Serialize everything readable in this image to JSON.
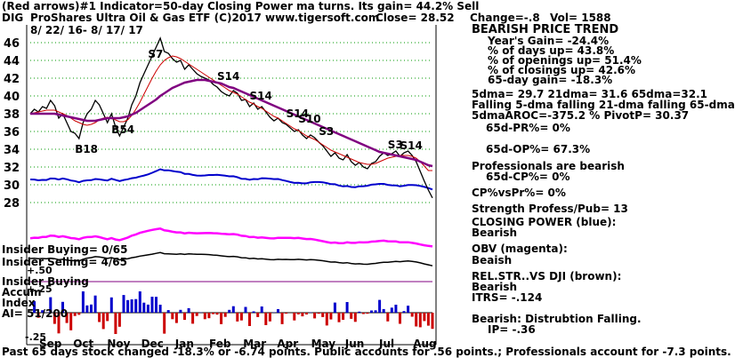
{
  "header": {
    "line1": "(Red arrows)#1 Indicator=50-day Closing Power ma turns. Its gain= 44.2% Sell",
    "ticker": "DIG",
    "line2": "ProShares Ultra Oil & Gas ETF  (C)2017 www.tigersoft.com",
    "close": "Close=  28.52",
    "change": "Change=-.8",
    "vol": "Vol= 1588",
    "dates": "8/ 22/ 16-  8/ 17/ 17"
  },
  "right_panel": {
    "trend": "BEARISH PRICE TREND",
    "stats": [
      "Year's Gain= -24.4%",
      "% of days up= 43.8%",
      "% of openings up= 51.4%",
      "% of closings up= 42.6%",
      "65-day gain= -18.3%"
    ],
    "ma_line": "5dma= 29.7 21dma= 31.6 65dma=32.1",
    "falling": "Falling 5-dma falling 21-dma falling 65-dma",
    "aroc": "5dmaAROC=-375.2 %  PivotP= 30.37",
    "pr": "65d-PR%= 0%",
    "op": "65d-OP%= 67.3%",
    "prof": "Professionals are bearish",
    "cp": "65d-CP%= 0%",
    "cpvspr": "CP%vsPr%= 0%",
    "strength": "Strength Profess/Pub= 13",
    "closing_power": "CLOSING POWER (blue):",
    "closing_power_v": "Bearish",
    "obv": "OBV (magenta):",
    "obv_v": "Beaish",
    "relstr": "REL.STR..VS DJI (brown):",
    "relstr_v": "Bearish",
    "itrs": "ITRS= -.124",
    "bearish": "Bearish: Distrubtion Falling.",
    "ip": "IP= -.36"
  },
  "left_labels": {
    "insider_buying": "Insider Buying= 0/65",
    "insider_selling": "Insider Selling= 4/65",
    "plus50": "+.50",
    "insider_buying2": "Insider Buying",
    "accum": "Accum",
    "plus25": "+.25",
    "index": "Index",
    "ai": "AI= 51/200",
    "minus25": "-.25"
  },
  "footer": "Past 65 days stock changed -18.3% or -6.74 points.  Public accounts for .56 points.;  Professionals account for -7.3 points.",
  "colors": {
    "price": "#000000",
    "ma21": "#cc0000",
    "ma65": "#800080",
    "closing_power": "#0000cc",
    "obv": "#ff00ff",
    "relstr": "#cc0000",
    "grid": "#009900",
    "accum_pos": "#0000cc",
    "accum_neg": "#cc0000",
    "arrow": "#ff0000"
  },
  "signals": [
    {
      "label": "S7",
      "month": "Dec"
    },
    {
      "label": "S14",
      "month": "Feb"
    },
    {
      "label": "S14",
      "month": "Mar"
    },
    {
      "label": "S14",
      "month": "Apr"
    },
    {
      "label": "S10",
      "month": "Apr"
    },
    {
      "label": "S3",
      "month": "May"
    },
    {
      "label": "S3",
      "month": "Jul"
    },
    {
      "label": "S14",
      "month": "Jul"
    },
    {
      "label": "B54",
      "month": "Nov"
    },
    {
      "label": "B18",
      "month": "Oct"
    }
  ],
  "chart_data": {
    "type": "line",
    "ylim": [
      27,
      48
    ],
    "y_ticks": [
      28,
      30,
      32,
      34,
      36,
      38,
      40,
      42,
      44,
      46
    ],
    "months": [
      "Sep",
      "Oct",
      "Nov",
      "Dec",
      "Jan",
      "Feb",
      "Mar",
      "Apr",
      "May",
      "Jun",
      "Jul",
      "Aug"
    ],
    "x": [
      0,
      1,
      2,
      3,
      4,
      5,
      6,
      7,
      8,
      9,
      10,
      11,
      12,
      13,
      14,
      15,
      16,
      17,
      18,
      19,
      20,
      21,
      22,
      23,
      24,
      25,
      26,
      27,
      28,
      29,
      30,
      31,
      32,
      33,
      34,
      35,
      36,
      37,
      38,
      39,
      40,
      41,
      42,
      43,
      44,
      45,
      46,
      47,
      48,
      49,
      50,
      51,
      52,
      53,
      54,
      55,
      56,
      57,
      58,
      59,
      60,
      61,
      62,
      63,
      64,
      65,
      66,
      67,
      68,
      69,
      70,
      71,
      72,
      73,
      74,
      75,
      76,
      77,
      78,
      79,
      80,
      81,
      82,
      83,
      84,
      85,
      86,
      87,
      88,
      89,
      90,
      91,
      92,
      93,
      94,
      95,
      96,
      97,
      98,
      99
    ],
    "series": [
      {
        "values": [
          38,
          38.5,
          38.2,
          38.8,
          38.6,
          39.5,
          38.9,
          37.5,
          38,
          37,
          36,
          35.8,
          35.2,
          37,
          38,
          38.5,
          39.5,
          39,
          38,
          37,
          38,
          36.5,
          35.5,
          36.5,
          37.5,
          39,
          40,
          41.5,
          42.5,
          43.5,
          44.5,
          45.5,
          46.5,
          45,
          44.8,
          44.2,
          43.8,
          44,
          43,
          43.5,
          43,
          42.5,
          42.2,
          42,
          41.8,
          41.3,
          41,
          40.5,
          40.2,
          40,
          40.6,
          40.3,
          39.5,
          39.6,
          38.8,
          39.2,
          38.5,
          38.8,
          38.2,
          37.6,
          37.2,
          37.5,
          37,
          36.8,
          36.4,
          36,
          36.2,
          35.6,
          35.2,
          35.6,
          35.3,
          34.8,
          34.4,
          33.8,
          33.2,
          33.6,
          33,
          32.8,
          33.4,
          32.6,
          32.2,
          32.5,
          32,
          31.8,
          32.4,
          32.6,
          33.2,
          33.6,
          33.3,
          33.5,
          33.8,
          33.2,
          33.6,
          33.8,
          33.3,
          32.6,
          31.5,
          30.4,
          29.4,
          28.52
        ]
      },
      {
        "values": [
          38,
          38.1,
          38.2,
          38.3,
          38.4,
          38.4,
          38.4,
          38.2,
          38,
          37.8,
          37.5,
          37.2,
          37,
          36.8,
          36.7,
          36.8,
          37,
          37.3,
          37.5,
          37.6,
          37.5,
          37.3,
          37.1,
          37.1,
          37.3,
          37.8,
          38.5,
          39.3,
          40.2,
          41.1,
          42,
          42.8,
          43.5,
          44,
          44.3,
          44.5,
          44.4,
          44.2,
          43.9,
          43.6,
          43.3,
          43,
          42.7,
          42.4,
          42.1,
          41.8,
          41.5,
          41.2,
          40.9,
          40.6,
          40.4,
          40.2,
          39.9,
          39.6,
          39.3,
          39.1,
          38.8,
          38.6,
          38.3,
          38,
          37.7,
          37.5,
          37.2,
          36.9,
          36.6,
          36.3,
          36.1,
          35.8,
          35.5,
          35.3,
          35.1,
          34.8,
          34.5,
          34.2,
          33.9,
          33.7,
          33.5,
          33.3,
          33.1,
          32.9,
          32.7,
          32.5,
          32.4,
          32.3,
          32.3,
          32.4,
          32.6,
          32.8,
          33,
          33.1,
          33.2,
          33.3,
          33.3,
          33.3,
          33.2,
          33,
          32.6,
          32.1,
          31.6,
          31.6
        ]
      },
      {
        "values": [
          38,
          38,
          38,
          38,
          38,
          38,
          38,
          37.9,
          37.8,
          37.7,
          37.6,
          37.5,
          37.4,
          37.3,
          37.2,
          37.2,
          37.2,
          37.3,
          37.4,
          37.5,
          37.5,
          37.5,
          37.5,
          37.6,
          37.7,
          37.9,
          38.1,
          38.4,
          38.7,
          39,
          39.3,
          39.6,
          40,
          40.3,
          40.6,
          40.9,
          41.1,
          41.3,
          41.5,
          41.6,
          41.7,
          41.8,
          41.8,
          41.8,
          41.7,
          41.6,
          41.5,
          41.4,
          41.2,
          41,
          40.9,
          40.7,
          40.5,
          40.3,
          40.1,
          39.9,
          39.7,
          39.5,
          39.3,
          39.1,
          38.9,
          38.7,
          38.5,
          38.3,
          38.1,
          37.9,
          37.7,
          37.5,
          37.3,
          37.1,
          36.9,
          36.7,
          36.5,
          36.3,
          36.1,
          35.9,
          35.7,
          35.5,
          35.3,
          35.1,
          34.9,
          34.7,
          34.5,
          34.3,
          34.1,
          33.9,
          33.7,
          33.6,
          33.5,
          33.4,
          33.3,
          33.2,
          33.1,
          33,
          32.9,
          32.8,
          32.6,
          32.4,
          32.2,
          32.1
        ]
      }
    ]
  }
}
